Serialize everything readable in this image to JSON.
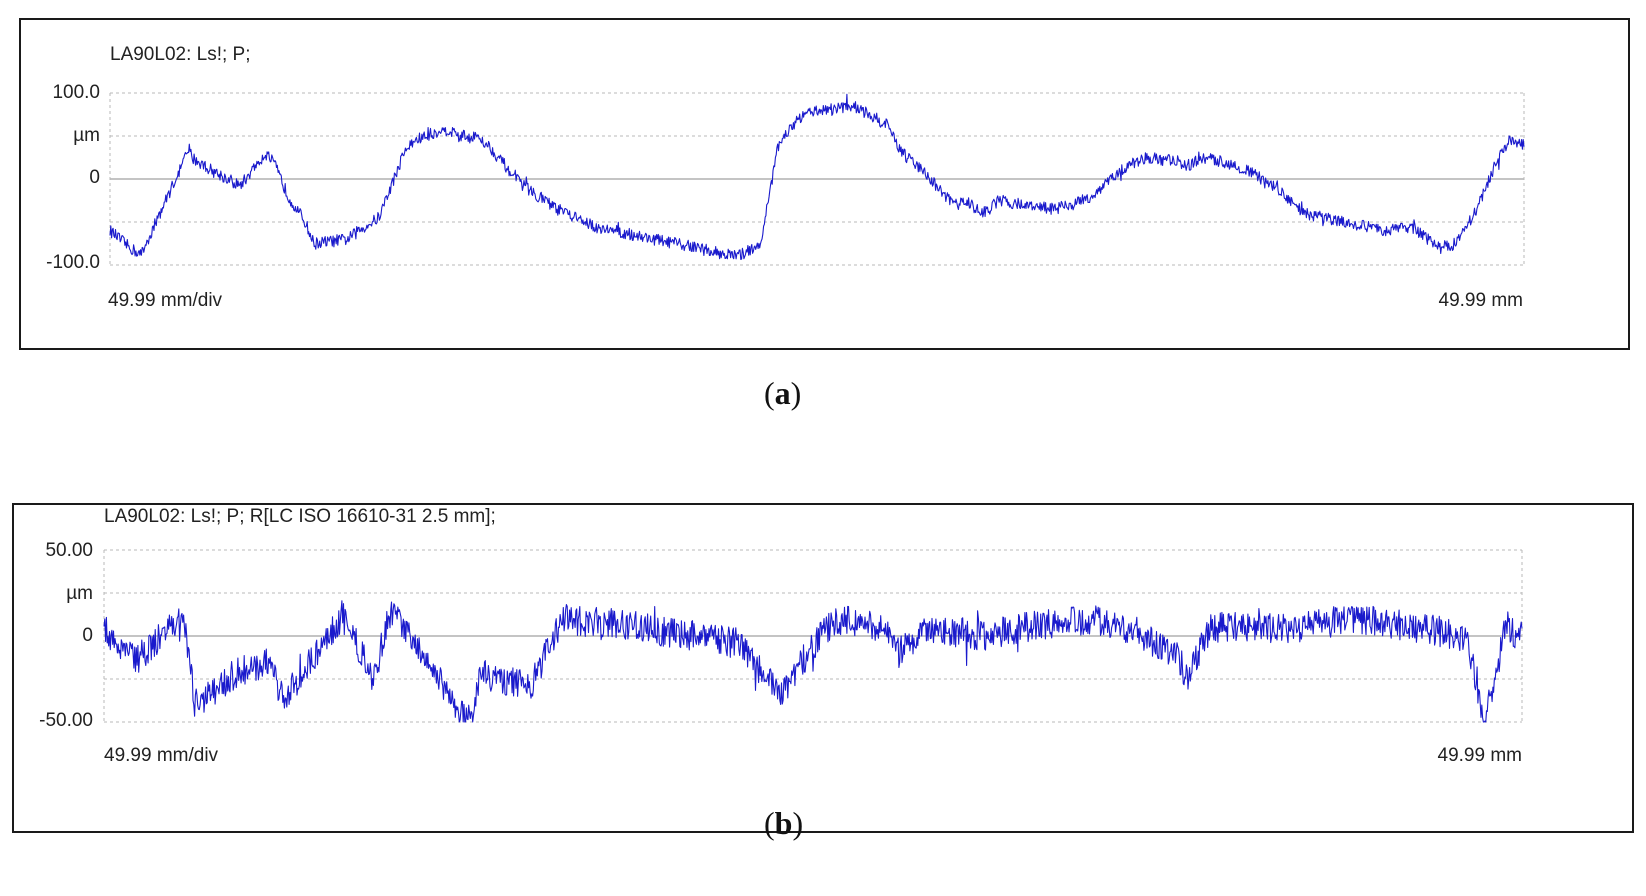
{
  "chart_data": [
    {
      "type": "line",
      "title": "LA90L02: Ls!; P;",
      "y_tick_labels": [
        "100.0",
        "µm",
        "0",
        "-100.0"
      ],
      "ylim": [
        -100,
        100
      ],
      "x_range_mm": [
        0,
        49.99
      ],
      "footer_left": "49.99 mm/div",
      "footer_right": "49.99 mm",
      "grid": true,
      "color": "#1a1acc",
      "series": [
        {
          "x": [
            0,
            0.7,
            1.1,
            1.9,
            2.8,
            2.9,
            3.6,
            4.6,
            5.5,
            5.8,
            6.3,
            6.9,
            7.2,
            8.4,
            8.8,
            9.5,
            10.1,
            10.4,
            10.8,
            11.8,
            12.7,
            12.9,
            13.3,
            14.5,
            15.8,
            17.1,
            18.5,
            20.7,
            22.2,
            23.0,
            23.3,
            23.6,
            24.0,
            24.4,
            25.0,
            26.3,
            27.5,
            28.0,
            28.9,
            29.5,
            30.0,
            30.3,
            30.8,
            31.1,
            31.4,
            32.3,
            33.3,
            34.2,
            34.8,
            35.7,
            36.6,
            37.8,
            38.2,
            38.5,
            39.4,
            40.2,
            41.2,
            42.2,
            43.6,
            44.3,
            45.0,
            46.0,
            47.0,
            47.6,
            48.4,
            49.0,
            49.5,
            49.99
          ],
          "y": [
            -60,
            -80,
            -88,
            -30,
            35,
            25,
            10,
            -8,
            30,
            18,
            -20,
            -50,
            -75,
            -70,
            -60,
            -45,
            5,
            32,
            45,
            58,
            48,
            52,
            42,
            -5,
            -35,
            -55,
            -65,
            -80,
            -90,
            -75,
            -20,
            35,
            58,
            70,
            80,
            85,
            62,
            30,
            5,
            -20,
            -30,
            -25,
            -40,
            -35,
            -25,
            -30,
            -35,
            -28,
            -18,
            10,
            25,
            20,
            15,
            25,
            20,
            10,
            -10,
            -40,
            -50,
            -55,
            -60,
            -55,
            -80,
            -75,
            -30,
            20,
            45,
            40
          ]
        }
      ]
    },
    {
      "type": "line",
      "title": "LA90L02: Ls!; P; R[LC ISO 16610-31 2.5 mm];",
      "y_tick_labels": [
        "50.00",
        "µm",
        "0",
        "-50.00"
      ],
      "ylim": [
        -50,
        50
      ],
      "x_range_mm": [
        0,
        49.99
      ],
      "footer_left": "49.99 mm/div",
      "footer_right": "49.99 mm",
      "grid": true,
      "color": "#1a1acc",
      "series": [
        {
          "x": [
            0,
            1.1,
            2.8,
            3.2,
            4.8,
            5.8,
            6.3,
            8.4,
            9.5,
            10.1,
            12.9,
            13.3,
            15.0,
            16.2,
            19.0,
            22.5,
            23.8,
            25.0,
            25.8,
            27.5,
            28.0,
            29.0,
            31.0,
            32.5,
            35.0,
            37.8,
            38.2,
            39.0,
            42.0,
            44.0,
            46.2,
            48.0,
            48.7,
            49.4,
            49.99
          ],
          "y": [
            5,
            -15,
            12,
            -40,
            -20,
            -15,
            -38,
            12,
            -25,
            15,
            -50,
            -22,
            -30,
            10,
            5,
            -5,
            -35,
            -5,
            10,
            5,
            -10,
            5,
            0,
            5,
            10,
            -10,
            -25,
            5,
            5,
            10,
            5,
            0,
            -50,
            5,
            0
          ]
        }
      ]
    }
  ],
  "captions": [
    "a",
    "b"
  ]
}
